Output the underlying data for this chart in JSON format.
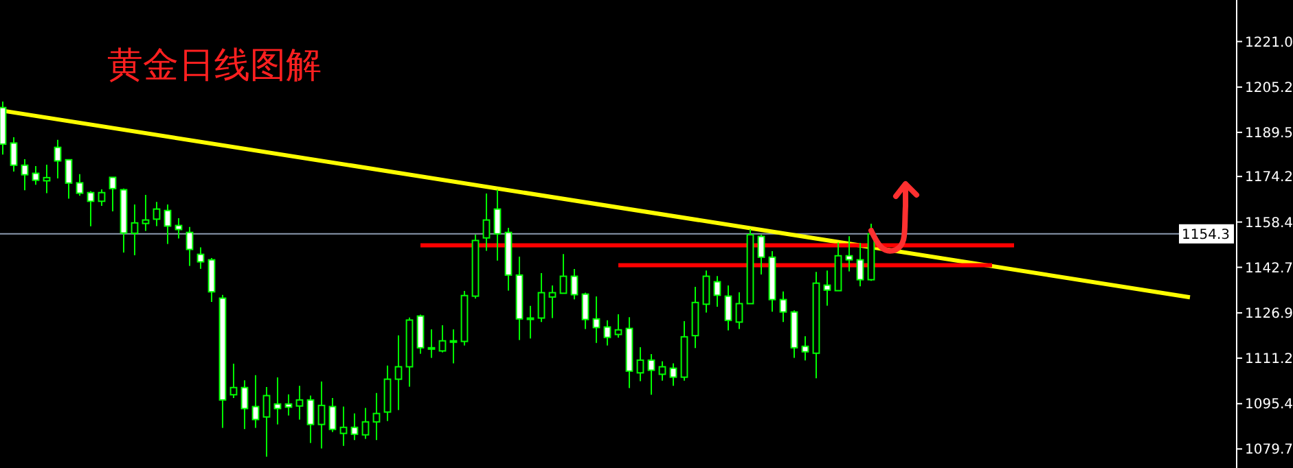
{
  "chart_data": {
    "type": "candlestick",
    "title": "黄金日线图解",
    "categories": [
      null,
      null,
      null,
      null,
      null,
      null,
      null,
      null,
      null,
      null,
      null,
      null,
      null,
      null,
      null,
      null,
      null,
      null,
      null,
      null,
      null,
      null,
      null,
      null,
      null,
      null,
      null,
      null,
      null,
      null,
      null,
      null,
      null,
      null,
      null,
      null,
      null,
      null,
      null,
      null,
      null,
      null,
      null,
      null,
      null,
      null,
      null,
      null,
      null,
      null,
      null,
      null,
      null,
      null,
      null,
      null,
      null,
      null,
      null,
      null,
      null,
      null,
      null,
      null,
      null,
      null,
      null,
      null,
      null,
      null,
      null,
      null,
      null,
      null,
      null,
      null,
      null,
      null,
      null,
      null,
      null,
      null,
      null,
      null,
      null,
      null,
      null,
      null,
      null,
      null,
      null,
      null,
      null,
      null,
      null,
      null,
      null,
      null,
      null,
      null,
      null,
      null,
      null,
      null,
      null,
      null,
      null,
      null,
      null
    ],
    "ylim": [
      1073.1,
      1235.4
    ],
    "yticks": [
      {
        "value": 1221.0,
        "label": "1221.0"
      },
      {
        "value": 1205.2,
        "label": "1205.2"
      },
      {
        "value": 1189.5,
        "label": "1189.5"
      },
      {
        "value": 1174.2,
        "label": "1174.2"
      },
      {
        "value": 1158.4,
        "label": "1158.4"
      },
      {
        "value": 1142.7,
        "label": "1142.7"
      },
      {
        "value": 1126.9,
        "label": "1126.9"
      },
      {
        "value": 1111.2,
        "label": "1111.2"
      },
      {
        "value": 1095.4,
        "label": "1095.4"
      },
      {
        "value": 1079.7,
        "label": "1079.7"
      }
    ],
    "tick_labels": "y",
    "grid": false,
    "ref_lines": [
      {
        "axis": "y",
        "value": 1154.3,
        "label": "1154.3",
        "color": "#8c9bb0"
      }
    ],
    "series": [
      {
        "color": "#00ff00",
        "ohlc": [
          [
            1198.1,
            1200.2,
            1181.8,
            1185.4
          ],
          [
            1185.8,
            1187.8,
            1175.9,
            1178.1
          ],
          [
            1178.1,
            1180.2,
            1169.4,
            1174.8
          ],
          [
            1175.3,
            1177.8,
            1171.3,
            1172.9
          ],
          [
            1172.7,
            1178.3,
            1168.4,
            1173.8
          ],
          [
            1184.3,
            1186.9,
            1173.5,
            1179.6
          ],
          [
            1180.0,
            1180.0,
            1166.5,
            1171.9
          ],
          [
            1172.0,
            1175.0,
            1167.5,
            1168.4
          ],
          [
            1168.6,
            1169.1,
            1156.9,
            1165.6
          ],
          [
            1165.6,
            1169.7,
            1164.0,
            1168.6
          ],
          [
            1173.9,
            1173.9,
            1162.1,
            1170.0
          ],
          [
            1169.6,
            1170.0,
            1147.8,
            1154.6
          ],
          [
            1154.5,
            1164.5,
            1146.9,
            1158.1
          ],
          [
            1157.9,
            1167.8,
            1155.3,
            1159.1
          ],
          [
            1159.4,
            1165.4,
            1157.0,
            1162.9
          ],
          [
            1162.4,
            1164.5,
            1150.8,
            1157.0
          ],
          [
            1157.2,
            1159.7,
            1152.7,
            1155.8
          ],
          [
            1154.8,
            1156.7,
            1143.2,
            1148.9
          ],
          [
            1147.2,
            1149.6,
            1142.2,
            1144.6
          ],
          [
            1145.3,
            1145.9,
            1130.7,
            1134.2
          ],
          [
            1132.0,
            1133.1,
            1087.0,
            1096.7
          ],
          [
            1098.5,
            1109.3,
            1097.4,
            1101.0
          ],
          [
            1101.0,
            1103.5,
            1086.6,
            1093.7
          ],
          [
            1094.4,
            1105.3,
            1087.0,
            1089.9
          ],
          [
            1090.8,
            1101.2,
            1077.0,
            1098.2
          ],
          [
            1095.3,
            1104.5,
            1088.2,
            1093.7
          ],
          [
            1095.3,
            1098.6,
            1091.3,
            1094.2
          ],
          [
            1094.6,
            1101.6,
            1089.9,
            1096.7
          ],
          [
            1096.7,
            1098.2,
            1081.8,
            1088.2
          ],
          [
            1088.2,
            1103.1,
            1079.9,
            1094.8
          ],
          [
            1094.4,
            1097.4,
            1085.6,
            1086.5
          ],
          [
            1085.1,
            1094.4,
            1080.8,
            1087.2
          ],
          [
            1087.2,
            1092.0,
            1082.8,
            1084.8
          ],
          [
            1084.6,
            1093.9,
            1083.2,
            1089.1
          ],
          [
            1089.1,
            1099.1,
            1082.8,
            1092.0
          ],
          [
            1092.5,
            1108.6,
            1089.4,
            1103.9
          ],
          [
            1103.9,
            1119.1,
            1093.2,
            1108.2
          ],
          [
            1108.2,
            1125.3,
            1101.3,
            1124.4
          ],
          [
            1125.8,
            1126.3,
            1112.7,
            1114.8
          ],
          [
            1114.8,
            1121.2,
            1111.3,
            1114.8
          ],
          [
            1113.7,
            1122.6,
            1113.2,
            1117.2
          ],
          [
            1117.2,
            1121.2,
            1109.4,
            1117.2
          ],
          [
            1117.0,
            1134.5,
            1115.6,
            1132.9
          ],
          [
            1132.7,
            1154.0,
            1131.9,
            1152.0
          ],
          [
            1152.9,
            1168.3,
            1148.4,
            1159.1
          ],
          [
            1162.9,
            1169.6,
            1145.0,
            1154.3
          ],
          [
            1154.8,
            1156.4,
            1134.6,
            1140.0
          ],
          [
            1140.0,
            1146.4,
            1117.5,
            1124.8
          ],
          [
            1125.1,
            1129.3,
            1118.0,
            1125.1
          ],
          [
            1125.1,
            1140.7,
            1123.7,
            1133.9
          ],
          [
            1132.4,
            1136.4,
            1125.1,
            1133.9
          ],
          [
            1133.7,
            1147.3,
            1133.7,
            1139.6
          ],
          [
            1139.6,
            1142.1,
            1131.6,
            1133.2
          ],
          [
            1133.4,
            1133.9,
            1121.3,
            1124.6
          ],
          [
            1124.8,
            1132.6,
            1116.5,
            1121.8
          ],
          [
            1122.0,
            1124.3,
            1115.6,
            1118.4
          ],
          [
            1119.4,
            1126.4,
            1118.3,
            1121.0
          ],
          [
            1121.5,
            1125.4,
            1100.8,
            1106.7
          ],
          [
            1106.1,
            1115.0,
            1103.2,
            1110.5
          ],
          [
            1110.5,
            1112.6,
            1098.5,
            1107.0
          ],
          [
            1105.6,
            1110.1,
            1103.4,
            1108.2
          ],
          [
            1107.7,
            1109.4,
            1101.6,
            1104.6
          ],
          [
            1104.6,
            1124.0,
            1103.4,
            1118.6
          ],
          [
            1119.0,
            1135.9,
            1114.7,
            1130.5
          ],
          [
            1129.9,
            1141.6,
            1127.0,
            1139.6
          ],
          [
            1137.7,
            1139.7,
            1129.0,
            1133.0
          ],
          [
            1132.7,
            1136.4,
            1120.8,
            1124.3
          ],
          [
            1123.7,
            1134.0,
            1121.3,
            1130.1
          ],
          [
            1130.1,
            1155.9,
            1130.1,
            1154.0
          ],
          [
            1153.4,
            1154.0,
            1140.2,
            1146.2
          ],
          [
            1146.2,
            1148.3,
            1127.3,
            1131.5
          ],
          [
            1131.5,
            1134.3,
            1123.7,
            1127.2
          ],
          [
            1127.2,
            1127.8,
            1111.3,
            1114.8
          ],
          [
            1115.3,
            1118.8,
            1110.4,
            1113.4
          ],
          [
            1112.9,
            1141.1,
            1104.2,
            1137.2
          ],
          [
            1136.5,
            1141.6,
            1129.4,
            1134.8
          ],
          [
            1134.6,
            1151.3,
            1134.6,
            1146.7
          ],
          [
            1146.7,
            1153.5,
            1141.3,
            1145.3
          ],
          [
            1145.3,
            1151.1,
            1136.1,
            1138.4
          ],
          [
            1138.4,
            1157.8,
            1138.0,
            1154.3
          ],
          null,
          null,
          null,
          null,
          null,
          null,
          null,
          null,
          null,
          null,
          null,
          null,
          null,
          null,
          null,
          null,
          null,
          null,
          null,
          null,
          null,
          null,
          null,
          null,
          null,
          null,
          null,
          null,
          null
        ]
      },
      {
        "type": "line",
        "color": "#ffff00",
        "values": [
          1197.0,
          null,
          null,
          null,
          null,
          null,
          null,
          null,
          null,
          null,
          null,
          null,
          null,
          null,
          null,
          null,
          null,
          null,
          null,
          null,
          null,
          null,
          null,
          null,
          null,
          null,
          null,
          null,
          null,
          null,
          null,
          null,
          null,
          null,
          null,
          null,
          null,
          null,
          null,
          null,
          null,
          null,
          null,
          null,
          null,
          null,
          null,
          null,
          null,
          null,
          null,
          null,
          null,
          null,
          null,
          null,
          null,
          null,
          null,
          null,
          null,
          null,
          null,
          null,
          null,
          null,
          null,
          null,
          null,
          null,
          null,
          null,
          null,
          null,
          null,
          null,
          null,
          null,
          null,
          null,
          null,
          null,
          null,
          null,
          null,
          null,
          null,
          null,
          null,
          null,
          null,
          null,
          null,
          null,
          null,
          null,
          null,
          null,
          null,
          null,
          null,
          null,
          null,
          null,
          null,
          null,
          null,
          null,
          1132.3
        ]
      },
      {
        "type": "line",
        "color": "#ff0000",
        "values": [
          null,
          null,
          null,
          null,
          null,
          null,
          null,
          null,
          null,
          null,
          null,
          null,
          null,
          null,
          null,
          null,
          null,
          null,
          null,
          null,
          null,
          null,
          null,
          null,
          null,
          null,
          null,
          null,
          null,
          null,
          null,
          null,
          null,
          null,
          null,
          null,
          null,
          null,
          1150.3,
          null,
          null,
          null,
          null,
          null,
          null,
          null,
          null,
          null,
          null,
          null,
          null,
          null,
          null,
          null,
          null,
          null,
          null,
          null,
          null,
          null,
          null,
          null,
          null,
          null,
          null,
          null,
          null,
          null,
          null,
          null,
          null,
          null,
          null,
          null,
          null,
          null,
          null,
          null,
          null,
          null,
          null,
          null,
          null,
          null,
          null,
          null,
          null,
          null,
          null,
          null,
          null,
          null,
          1150.3,
          null,
          null,
          null,
          null,
          null,
          null,
          null,
          null,
          null,
          null,
          null,
          null,
          null,
          null,
          null,
          null
        ]
      },
      {
        "type": "line",
        "color": "#ff0000",
        "values": [
          null,
          null,
          null,
          null,
          null,
          null,
          null,
          null,
          null,
          null,
          null,
          null,
          null,
          null,
          null,
          null,
          null,
          null,
          null,
          null,
          null,
          null,
          null,
          null,
          null,
          null,
          null,
          null,
          null,
          null,
          null,
          null,
          null,
          null,
          null,
          null,
          null,
          null,
          null,
          null,
          null,
          null,
          null,
          null,
          null,
          null,
          null,
          null,
          null,
          null,
          null,
          null,
          null,
          null,
          null,
          null,
          1143.4,
          null,
          null,
          null,
          null,
          null,
          null,
          null,
          null,
          null,
          null,
          null,
          null,
          null,
          null,
          null,
          null,
          null,
          null,
          null,
          null,
          null,
          null,
          null,
          null,
          null,
          null,
          null,
          null,
          null,
          null,
          null,
          null,
          null,
          1143.4,
          null,
          null,
          null,
          null,
          null,
          null,
          null,
          null,
          null,
          null,
          null,
          null,
          null,
          null,
          null,
          null,
          null,
          null
        ]
      }
    ]
  }
}
